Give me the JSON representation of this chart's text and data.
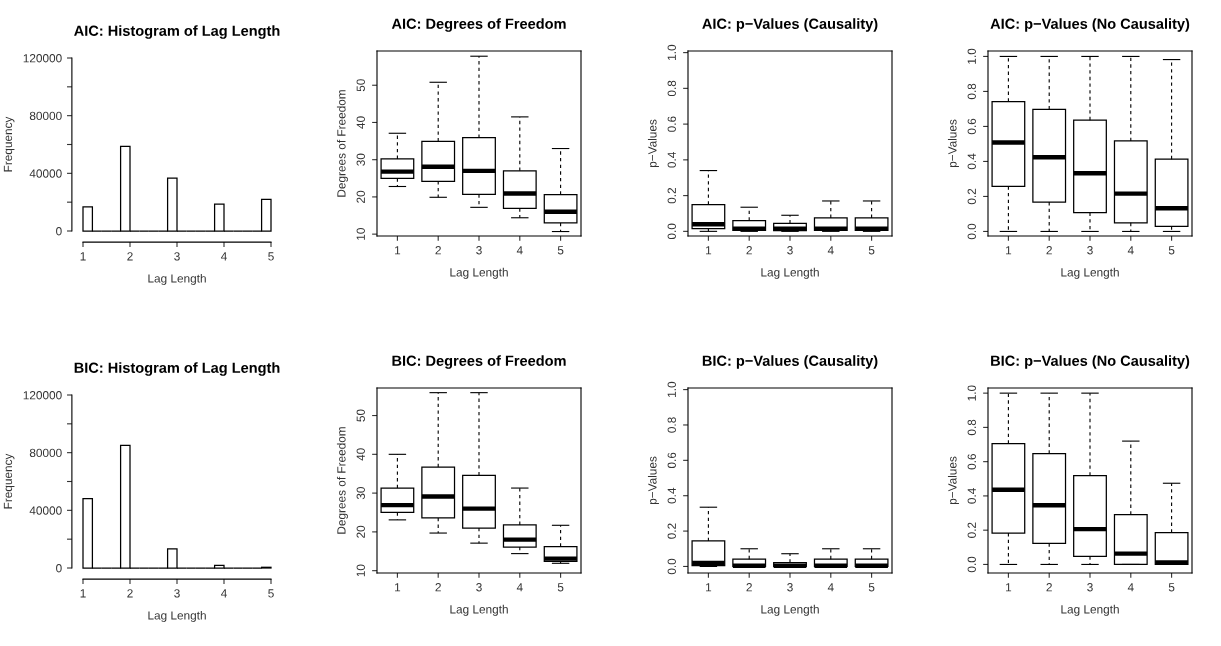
{
  "chart_data": [
    {
      "type": "histogram",
      "title": "AIC: Histogram of Lag Length",
      "xlabel": "Lag Length",
      "ylabel": "Frequency",
      "bins": [
        1.0,
        1.2,
        1.4,
        1.6,
        1.8,
        2.0,
        2.2,
        2.4,
        2.6,
        2.8,
        3.0,
        3.2,
        3.4,
        3.6,
        3.8,
        4.0,
        4.2,
        4.4,
        4.6,
        4.8,
        5.0
      ],
      "values": [
        16700,
        0,
        0,
        0,
        58700,
        0,
        0,
        0,
        0,
        36600,
        0,
        0,
        0,
        0,
        18600,
        0,
        0,
        0,
        0,
        22000
      ],
      "xlim": [
        1,
        5
      ],
      "xticks": [
        1,
        2,
        3,
        4,
        5
      ],
      "ylim": [
        0,
        120000
      ],
      "yticks": [
        0,
        {
          "value": 20000,
          "label": null
        },
        40000,
        {
          "value": 60000,
          "label": null
        },
        80000,
        {
          "value": 100000,
          "label": null
        },
        120000
      ]
    },
    {
      "type": "box",
      "title": "AIC: Degrees of Freedom",
      "xlabel": "Lag Length",
      "ylabel": "Degrees of Freedom",
      "categories": [
        "1",
        "2",
        "3",
        "4",
        "5"
      ],
      "boxes": [
        {
          "low": 22.8,
          "q1": 25.0,
          "median": 26.8,
          "q3": 30.2,
          "high": 37.1
        },
        {
          "low": 19.9,
          "q1": 24.2,
          "median": 28.1,
          "q3": 34.9,
          "high": 50.8
        },
        {
          "low": 17.2,
          "q1": 20.7,
          "median": 27.0,
          "q3": 35.9,
          "high": 57.8
        },
        {
          "low": 14.4,
          "q1": 16.9,
          "median": 20.9,
          "q3": 27.0,
          "high": 41.5
        },
        {
          "low": 10.7,
          "q1": 13.0,
          "median": 16.0,
          "q3": 20.6,
          "high": 33.0
        }
      ],
      "ylim": [
        9.5,
        59.2
      ],
      "yticks": [
        10,
        20,
        30,
        40,
        50
      ]
    },
    {
      "type": "box",
      "title": "AIC: p−Values (Causality)",
      "xlabel": "Lag Length",
      "ylabel": "p−Values",
      "categories": [
        "1",
        "2",
        "3",
        "4",
        "5"
      ],
      "boxes": [
        {
          "low": 0.0,
          "q1": 0.015,
          "median": 0.04,
          "q3": 0.15,
          "high": 0.34
        },
        {
          "low": 0.0,
          "q1": 0.005,
          "median": 0.015,
          "q3": 0.06,
          "high": 0.135
        },
        {
          "low": 0.0,
          "q1": 0.004,
          "median": 0.015,
          "q3": 0.045,
          "high": 0.09
        },
        {
          "low": 0.0,
          "q1": 0.005,
          "median": 0.015,
          "q3": 0.075,
          "high": 0.17
        },
        {
          "low": 0.0,
          "q1": 0.005,
          "median": 0.015,
          "q3": 0.075,
          "high": 0.17
        }
      ],
      "ylim": [
        -0.026,
        1.009
      ],
      "yticks": [
        {
          "value": 0,
          "label": "0.0"
        },
        0.2,
        0.4,
        0.6,
        0.8,
        {
          "value": 1,
          "label": "1.0"
        }
      ]
    },
    {
      "type": "box",
      "title": "AIC: p−Values (No Causality)",
      "xlabel": "Lag Length",
      "ylabel": "p−Values",
      "categories": [
        "1",
        "2",
        "3",
        "4",
        "5"
      ],
      "boxes": [
        {
          "low": 0.0,
          "q1": 0.258,
          "median": 0.508,
          "q3": 0.742,
          "high": 1.0
        },
        {
          "low": 0.0,
          "q1": 0.168,
          "median": 0.424,
          "q3": 0.698,
          "high": 1.0
        },
        {
          "low": 0.0,
          "q1": 0.108,
          "median": 0.333,
          "q3": 0.636,
          "high": 1.0
        },
        {
          "low": 0.0,
          "q1": 0.049,
          "median": 0.216,
          "q3": 0.517,
          "high": 1.0
        },
        {
          "low": 0.0,
          "q1": 0.029,
          "median": 0.132,
          "q3": 0.413,
          "high": 0.982
        }
      ],
      "ylim": [
        -0.026,
        1.031
      ],
      "yticks": [
        {
          "value": 0,
          "label": "0.0"
        },
        0.2,
        0.4,
        0.6,
        0.8,
        {
          "value": 1,
          "label": "1.0"
        }
      ]
    },
    {
      "type": "histogram",
      "title": "BIC: Histogram of Lag Length",
      "xlabel": "Lag Length",
      "ylabel": "Frequency",
      "bins": [
        1.0,
        1.2,
        1.4,
        1.6,
        1.8,
        2.0,
        2.2,
        2.4,
        2.6,
        2.8,
        3.0,
        3.2,
        3.4,
        3.6,
        3.8,
        4.0,
        4.2,
        4.4,
        4.6,
        4.8,
        5.0
      ],
      "values": [
        48200,
        0,
        0,
        0,
        85000,
        0,
        0,
        0,
        0,
        13200,
        0,
        0,
        0,
        0,
        1900,
        0,
        0,
        0,
        0,
        500
      ],
      "xlim": [
        1,
        5
      ],
      "xticks": [
        1,
        2,
        3,
        4,
        5
      ],
      "ylim": [
        0,
        120000
      ],
      "yticks": [
        0,
        {
          "value": 20000,
          "label": null
        },
        40000,
        {
          "value": 60000,
          "label": null
        },
        80000,
        {
          "value": 100000,
          "label": null
        },
        120000
      ]
    },
    {
      "type": "box",
      "title": "BIC: Degrees of Freedom",
      "xlabel": "Lag Length",
      "ylabel": "Degrees of Freedom",
      "categories": [
        "1",
        "2",
        "3",
        "4",
        "5"
      ],
      "boxes": [
        {
          "low": 23.1,
          "q1": 25.0,
          "median": 26.9,
          "q3": 31.3,
          "high": 40.0
        },
        {
          "low": 19.7,
          "q1": 23.6,
          "median": 29.1,
          "q3": 36.7,
          "high": 55.9
        },
        {
          "low": 17.1,
          "q1": 21.0,
          "median": 26.0,
          "q3": 34.6,
          "high": 55.9
        },
        {
          "low": 14.4,
          "q1": 16.1,
          "median": 18.0,
          "q3": 21.8,
          "high": 31.3
        },
        {
          "low": 11.9,
          "q1": 12.4,
          "median": 13.1,
          "q3": 16.2,
          "high": 21.7
        }
      ],
      "ylim": [
        9.4,
        57.1
      ],
      "yticks": [
        10,
        20,
        30,
        40,
        50
      ]
    },
    {
      "type": "box",
      "title": "BIC: p−Values (Causality)",
      "xlabel": "Lag Length",
      "ylabel": "p−Values",
      "categories": [
        "1",
        "2",
        "3",
        "4",
        "5"
      ],
      "boxes": [
        {
          "low": 0.0,
          "q1": 0.005,
          "median": 0.02,
          "q3": 0.144,
          "high": 0.335
        },
        {
          "low": 0.0,
          "q1": 0.0,
          "median": 0.004,
          "q3": 0.041,
          "high": 0.1
        },
        {
          "low": 0.0,
          "q1": 0.0,
          "median": 0.004,
          "q3": 0.022,
          "high": 0.072
        },
        {
          "low": 0.0,
          "q1": 0.0,
          "median": 0.004,
          "q3": 0.041,
          "high": 0.1
        },
        {
          "low": 0.0,
          "q1": 0.0,
          "median": 0.004,
          "q3": 0.041,
          "high": 0.1
        }
      ],
      "ylim": [
        -0.037,
        1.009
      ],
      "yticks": [
        {
          "value": 0,
          "label": "0.0"
        },
        0.2,
        0.4,
        0.6,
        0.8,
        {
          "value": 1,
          "label": "1.0"
        }
      ]
    },
    {
      "type": "box",
      "title": "BIC: p−Values (No Causality)",
      "xlabel": "Lag Length",
      "ylabel": "p−Values",
      "categories": [
        "1",
        "2",
        "3",
        "4",
        "5"
      ],
      "boxes": [
        {
          "low": 0.0,
          "q1": 0.183,
          "median": 0.436,
          "q3": 0.705,
          "high": 1.0
        },
        {
          "low": 0.0,
          "q1": 0.123,
          "median": 0.345,
          "q3": 0.647,
          "high": 1.0
        },
        {
          "low": 0.0,
          "q1": 0.047,
          "median": 0.206,
          "q3": 0.519,
          "high": 1.0
        },
        {
          "low": 0.0,
          "q1": 0.0,
          "median": 0.063,
          "q3": 0.291,
          "high": 0.72
        },
        {
          "low": 0.0,
          "q1": 0.0,
          "median": 0.011,
          "q3": 0.186,
          "high": 0.474
        }
      ],
      "ylim": [
        -0.05,
        1.03
      ],
      "yticks": [
        {
          "value": 0,
          "label": "0.0"
        },
        0.2,
        0.4,
        0.6,
        0.8,
        {
          "value": 1,
          "label": "1.0"
        }
      ]
    }
  ]
}
